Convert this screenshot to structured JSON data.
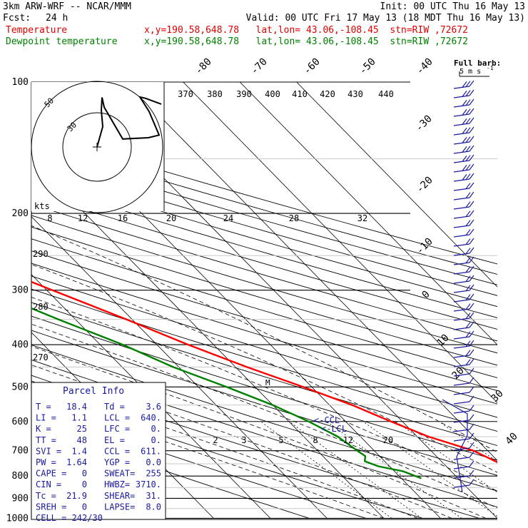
{
  "header": {
    "model": "3km ARW-WRF -- NCAR/MMM",
    "init": "Init: 00 UTC Thu 16 May 13",
    "fcst_label": "Fcst:",
    "fcst_value": "24 h",
    "valid": "Valid: 00 UTC Fri 17 May 13 (18 MDT Thu 16 May 13)",
    "temp_label": "Temperature",
    "dew_label": "Dewpoint temperature",
    "temp_info": "x,y=190.58,648.78   lat,lon= 43.06,-108.45  stn=RIW ,72672",
    "dew_info": "x,y=190.58,648.78   lat,lon= 43.06,-108.45  stn=RIW ,72672",
    "colors": {
      "temperature": "#ff0000",
      "dewpoint": "#008000",
      "parcel_text": "#1a1aa0"
    }
  },
  "chart_data": {
    "type": "line",
    "yscale": "log",
    "ylim": [
      1000,
      100
    ],
    "pressure_ticks": [
      100,
      200,
      300,
      400,
      500,
      600,
      700,
      800,
      900,
      1000
    ],
    "isotherm_labels": [
      "-80",
      "-70",
      "-60",
      "-50",
      "-40",
      "-30",
      "-20",
      "-10",
      "0",
      "10",
      "20",
      "30",
      "40"
    ],
    "theta_labels": [
      "370",
      "380",
      "390",
      "400",
      "410",
      "420",
      "430",
      "440"
    ],
    "theta_side_labels": [
      "290",
      "280",
      "270"
    ],
    "mixing_ratio_labels": [
      "2",
      "3",
      "5",
      "8",
      "12",
      "20"
    ],
    "hodograph_speed_labels": [
      "8",
      "12",
      "16",
      "20",
      "24",
      "28",
      "32"
    ],
    "hodograph_unit": "kts",
    "hodograph_ring_labels": [
      "30",
      "50"
    ],
    "barb_legend": [
      "Full barb:",
      "5 m s",
      "-1"
    ],
    "lcl_labels": [
      "<-CCL",
      "<-LCL"
    ],
    "parcel_marker": "M",
    "series": [
      {
        "name": "Temperature",
        "points": [
          [
            1000,
            null
          ],
          [
            830,
            24.0
          ],
          [
            800,
            22.0
          ],
          [
            750,
            20.0
          ],
          [
            700,
            17.5
          ],
          [
            650,
            12.0
          ],
          [
            600,
            8.0
          ],
          [
            550,
            4.0
          ],
          [
            500,
            -1.5
          ],
          [
            450,
            -8.0
          ],
          [
            400,
            -14.5
          ],
          [
            350,
            -21.0
          ],
          [
            300,
            -29.0
          ],
          [
            250,
            -38.5
          ],
          [
            225,
            -43.5
          ],
          [
            210,
            -47.5
          ],
          [
            200,
            -51.0
          ],
          [
            190,
            -53.5
          ],
          [
            175,
            -56.5
          ],
          [
            160,
            -56.5
          ],
          [
            150,
            -56.5
          ],
          [
            130,
            -57.0
          ],
          [
            115,
            -58.5
          ],
          [
            105,
            -59.5
          ],
          [
            100,
            -59.0
          ]
        ]
      },
      {
        "name": "Dewpoint temperature",
        "points": [
          [
            810,
            3.5
          ],
          [
            780,
            1.5
          ],
          [
            760,
            -2.0
          ],
          [
            740,
            -3.5
          ],
          [
            720,
            -2.5
          ],
          [
            700,
            -3.0
          ],
          [
            650,
            -4.0
          ],
          [
            600,
            -6.5
          ],
          [
            550,
            -10.0
          ],
          [
            500,
            -15.0
          ],
          [
            450,
            -21.0
          ],
          [
            400,
            -26.0
          ],
          [
            350,
            -33.0
          ],
          [
            300,
            -40.5
          ],
          [
            250,
            -49.5
          ],
          [
            225,
            -54.5
          ],
          [
            200,
            -59.0
          ],
          [
            190,
            -62.0
          ],
          [
            170,
            -66.5
          ],
          [
            150,
            -72.0
          ],
          [
            130,
            -78.0
          ],
          [
            115,
            -82.0
          ],
          [
            100,
            -85.5
          ]
        ]
      }
    ],
    "hodograph_trace": [
      [
        0,
        0
      ],
      [
        0.8,
        4.6
      ],
      [
        0.6,
        8.3
      ],
      [
        0.7,
        11.2
      ],
      [
        1.0,
        9.0
      ],
      [
        3.6,
        1.8
      ],
      [
        7.2,
        2.1
      ],
      [
        8.7,
        2.7
      ],
      [
        7.3,
        8.0
      ],
      [
        6.0,
        11.3
      ],
      [
        6.8,
        11.0
      ],
      [
        9.0,
        9.7
      ]
    ]
  },
  "parcel_info": {
    "title": "Parcel Info",
    "rows": [
      [
        "T  =",
        "18.4",
        "Td =",
        "3.6"
      ],
      [
        "LI =",
        "1.1",
        "LCL =",
        "640."
      ],
      [
        "K  =",
        "25",
        "LFC =",
        "0."
      ],
      [
        "TT =",
        "48",
        "EL  =",
        "0."
      ],
      [
        "SVI =",
        "1.4",
        "CCL =",
        "611."
      ],
      [
        "PW =",
        "1.64",
        "YGP =",
        "0.0"
      ],
      [
        "CAPE =",
        "0",
        "SWEAT=",
        "255"
      ],
      [
        "CIN =",
        "0",
        "HWBZ=",
        "3710."
      ],
      [
        "Tc =",
        "21.9",
        "SHEAR=",
        "31."
      ],
      [
        "SREH =",
        "0",
        "LAPSE=",
        "8.0"
      ]
    ],
    "cell": "CELL = 242/30"
  }
}
